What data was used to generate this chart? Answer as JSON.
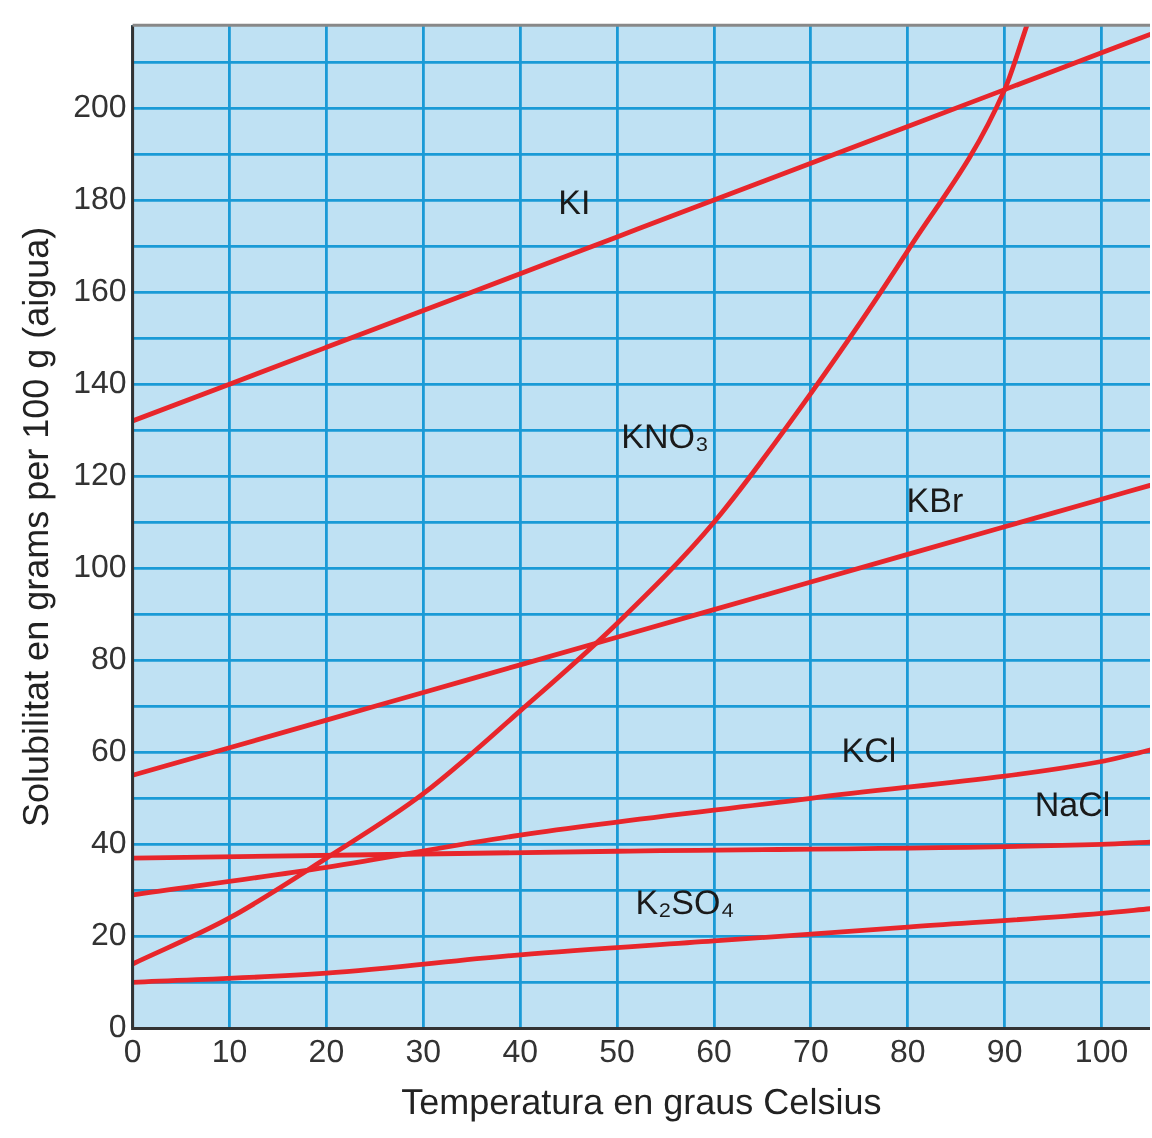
{
  "chart_data": {
    "type": "line",
    "xlabel": "Temperatura en graus Celsius",
    "ylabel": "Solubilitat en grams per 100 g (aigua)",
    "xlim": [
      0,
      105
    ],
    "ylim": [
      0,
      218
    ],
    "xticks": [
      0,
      10,
      20,
      30,
      40,
      50,
      60,
      70,
      80,
      90,
      100
    ],
    "yticks": [
      0,
      {
        "value": 10,
        "label": null
      },
      20,
      {
        "value": 30,
        "label": null
      },
      40,
      {
        "value": 50,
        "label": null
      },
      60,
      {
        "value": 70,
        "label": null
      },
      80,
      {
        "value": 90,
        "label": null
      },
      100,
      {
        "value": 110,
        "label": null
      },
      120,
      {
        "value": 130,
        "label": null
      },
      140,
      {
        "value": 150,
        "label": null
      },
      160,
      {
        "value": 170,
        "label": null
      },
      180,
      {
        "value": 190,
        "label": null
      },
      200,
      {
        "value": 210,
        "label": null
      }
    ],
    "grid": true,
    "legend": false,
    "marker": "none",
    "line_style": "solid",
    "series": [
      {
        "name": "KI",
        "color": "#e8262b",
        "x": [
          0,
          10,
          20,
          30,
          40,
          50,
          60,
          70,
          80,
          90,
          100,
          105
        ],
        "values": [
          132,
          140,
          148,
          156,
          164,
          172,
          180,
          188,
          196,
          204,
          212,
          216
        ]
      },
      {
        "name": "KNO₃",
        "color": "#e8262b",
        "x": [
          0,
          10,
          20,
          30,
          40,
          50,
          60,
          70,
          80,
          90,
          92.3
        ],
        "values": [
          14,
          24,
          37,
          51,
          69,
          88,
          110,
          138,
          169,
          204,
          218
        ]
      },
      {
        "name": "KBr",
        "color": "#e8262b",
        "x": [
          0,
          10,
          20,
          30,
          40,
          50,
          60,
          70,
          80,
          90,
          100,
          105
        ],
        "values": [
          55,
          61,
          67,
          73,
          79,
          85,
          91,
          97,
          103,
          109,
          115,
          118
        ]
      },
      {
        "name": "KCl",
        "color": "#e8262b",
        "x": [
          0,
          20,
          40,
          70,
          100,
          105
        ],
        "values": [
          29,
          35,
          42,
          50,
          58,
          60.5
        ]
      },
      {
        "name": "NaCl",
        "color": "#e8262b",
        "x": [
          0,
          50,
          100,
          105
        ],
        "values": [
          37,
          38.5,
          40,
          40.5
        ]
      },
      {
        "name": "K₂SO₄",
        "color": "#e8262b",
        "x": [
          0,
          20,
          40,
          60,
          80,
          100,
          105
        ],
        "values": [
          10,
          12,
          16,
          19,
          22,
          25,
          26
        ]
      }
    ]
  }
}
